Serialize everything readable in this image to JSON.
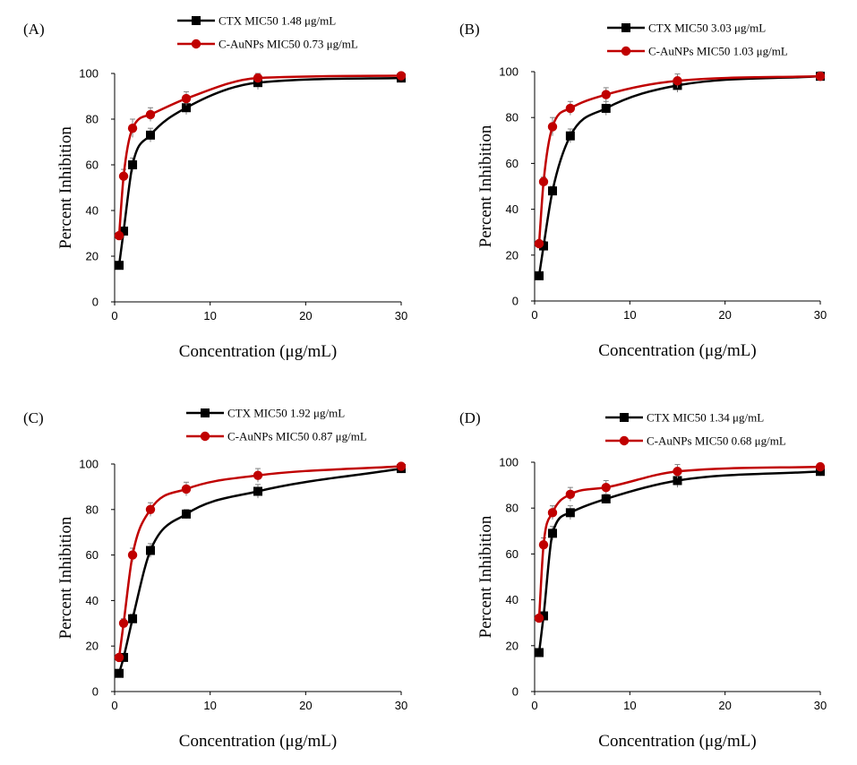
{
  "colors": {
    "ctx": "#000000",
    "aunp": "#c00000",
    "errorbar": "#808080"
  },
  "chart_data": [
    {
      "type": "line",
      "panel": "(A)",
      "xlabel": "Concentration (μg/mL)",
      "ylabel": "Percent Inhibition",
      "xlim": [
        0,
        30
      ],
      "ylim": [
        0,
        100
      ],
      "xticks": [
        0,
        10,
        20,
        30
      ],
      "yticks": [
        0,
        20,
        40,
        60,
        80,
        100
      ],
      "legend_position": "top-center",
      "x": [
        0.47,
        0.94,
        1.88,
        3.75,
        7.5,
        15,
        30
      ],
      "series": [
        {
          "name": "CTX MIC50  1.48 μg/mL",
          "marker": "square",
          "color": "#000000",
          "values": [
            16,
            31,
            60,
            73,
            85,
            96,
            98
          ],
          "errors": [
            1,
            1,
            3,
            3,
            3,
            3,
            2
          ]
        },
        {
          "name": "C-AuNPs MIC50  0.73 μg/mL",
          "marker": "circle",
          "color": "#c00000",
          "values": [
            29,
            55,
            76,
            82,
            89,
            98,
            99
          ],
          "errors": [
            1,
            3,
            4,
            3,
            3,
            2,
            1
          ]
        }
      ]
    },
    {
      "type": "line",
      "panel": "(B)",
      "xlabel": "Concentration (μg/mL)",
      "ylabel": "Percent Inhibition",
      "xlim": [
        0,
        30
      ],
      "ylim": [
        0,
        100
      ],
      "xticks": [
        0,
        10,
        20,
        30
      ],
      "yticks": [
        0,
        20,
        40,
        60,
        80,
        100
      ],
      "legend_position": "top-center",
      "x": [
        0.47,
        0.94,
        1.88,
        3.75,
        7.5,
        15,
        30
      ],
      "series": [
        {
          "name": "CTX MIC50  3.03 μg/mL",
          "marker": "square",
          "color": "#000000",
          "values": [
            11,
            24,
            48,
            72,
            84,
            94,
            98
          ],
          "errors": [
            1,
            2,
            2,
            3,
            3,
            3,
            2
          ]
        },
        {
          "name": "C-AuNPs MIC50  1.03 μg/mL",
          "marker": "circle",
          "color": "#c00000",
          "values": [
            25,
            52,
            76,
            84,
            90,
            96,
            98
          ],
          "errors": [
            1,
            2,
            4,
            3,
            3,
            3,
            2
          ]
        }
      ]
    },
    {
      "type": "line",
      "panel": "(C)",
      "xlabel": "Concentration (μg/mL)",
      "ylabel": "Percent Inhibition",
      "xlim": [
        0,
        30
      ],
      "ylim": [
        0,
        100
      ],
      "xticks": [
        0,
        10,
        20,
        30
      ],
      "yticks": [
        0,
        20,
        40,
        60,
        80,
        100
      ],
      "legend_position": "top-center",
      "x": [
        0.47,
        0.94,
        1.88,
        3.75,
        7.5,
        15,
        30
      ],
      "series": [
        {
          "name": "CTX MIC50  1.92 μg/mL",
          "marker": "square",
          "color": "#000000",
          "values": [
            8,
            15,
            32,
            62,
            78,
            88,
            98
          ],
          "errors": [
            1,
            1,
            2,
            3,
            2,
            3,
            2
          ]
        },
        {
          "name": "C-AuNPs MIC50  0.87 μg/mL",
          "marker": "circle",
          "color": "#c00000",
          "values": [
            15,
            30,
            60,
            80,
            89,
            95,
            99
          ],
          "errors": [
            1,
            2,
            3,
            3,
            3,
            3,
            1
          ]
        }
      ]
    },
    {
      "type": "line",
      "panel": "(D)",
      "xlabel": "Concentration (μg/mL)",
      "ylabel": "Percent Inhibition",
      "xlim": [
        0,
        30
      ],
      "ylim": [
        0,
        100
      ],
      "xticks": [
        0,
        10,
        20,
        30
      ],
      "yticks": [
        0,
        20,
        40,
        60,
        80,
        100
      ],
      "legend_position": "top-center",
      "x": [
        0.47,
        0.94,
        1.88,
        3.75,
        7.5,
        15,
        30
      ],
      "series": [
        {
          "name": "CTX MIC50  1.34 μg/mL",
          "marker": "square",
          "color": "#000000",
          "values": [
            17,
            33,
            69,
            78,
            84,
            92,
            96
          ],
          "errors": [
            1,
            1,
            3,
            3,
            2,
            3,
            2
          ]
        },
        {
          "name": "C-AuNPs MIC50  0.68 μg/mL",
          "marker": "circle",
          "color": "#c00000",
          "values": [
            32,
            64,
            78,
            86,
            89,
            96,
            98
          ],
          "errors": [
            1,
            3,
            3,
            3,
            3,
            3,
            1
          ]
        }
      ]
    }
  ]
}
